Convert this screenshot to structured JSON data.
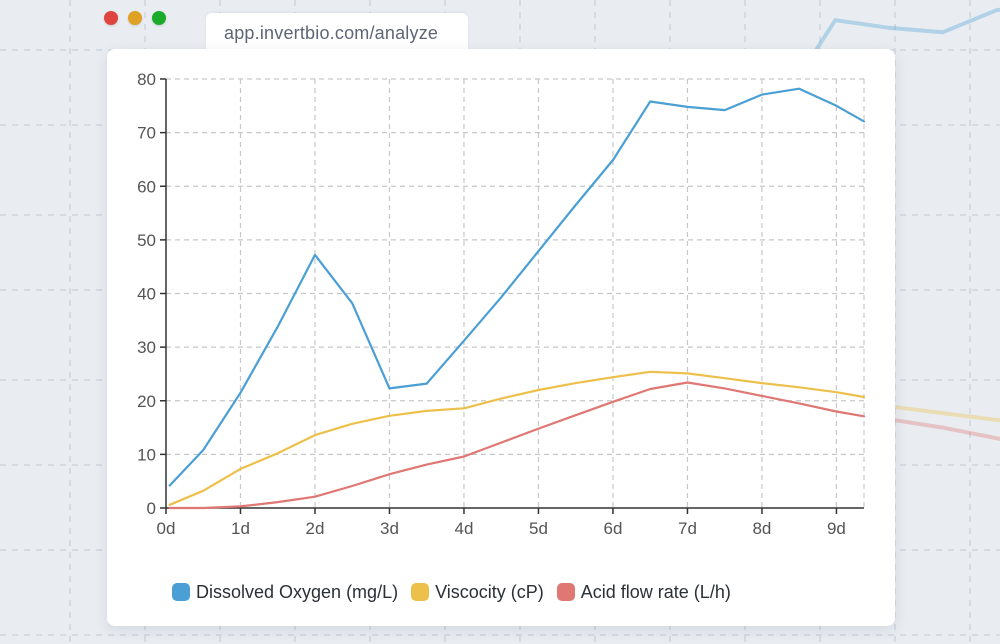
{
  "window": {
    "url": "app.invertbio.com/analyze",
    "controls": [
      "close",
      "minimize",
      "zoom"
    ]
  },
  "colors": {
    "dissolved_oxygen": "#4a9fd4",
    "viscosity": "#ecc04a",
    "acid_flow": "#df7773",
    "grid": "#c7c7c7",
    "axis": "#333333",
    "tick_text": "#555555"
  },
  "chart_data": {
    "type": "line",
    "title": "",
    "xlabel": "",
    "ylabel": "",
    "x_tick_labels": [
      "0d",
      "1d",
      "2d",
      "3d",
      "4d",
      "5d",
      "6d",
      "7d",
      "8d",
      "9d"
    ],
    "y_tick_labels": [
      "0",
      "10",
      "20",
      "30",
      "40",
      "50",
      "60",
      "70",
      "80"
    ],
    "xlim": [
      0,
      9.37
    ],
    "ylim": [
      0,
      80
    ],
    "grid": true,
    "legend_position": "bottom",
    "series": [
      {
        "name": "Dissolved Oxygen (mg/L)",
        "color_key": "dissolved_oxygen",
        "x": [
          0.05,
          0.5,
          1,
          1.5,
          2,
          2.5,
          3,
          3.5,
          4,
          4.5,
          5,
          5.5,
          6,
          6.5,
          7,
          7.5,
          8,
          8.5,
          9,
          9.37
        ],
        "y": [
          4.2,
          10.8,
          21.5,
          33.8,
          47.2,
          38.2,
          22.3,
          23.2,
          31.2,
          39.3,
          47.9,
          56.5,
          64.9,
          75.8,
          74.8,
          74.2,
          77.1,
          78.2,
          75.0,
          72.1
        ]
      },
      {
        "name": "Viscocity (cP)",
        "color_key": "viscosity",
        "x": [
          0.05,
          0.5,
          1,
          1.5,
          2,
          2.5,
          3,
          3.5,
          4,
          4.5,
          5,
          5.5,
          6,
          6.5,
          7,
          7.5,
          8,
          8.5,
          9,
          9.37
        ],
        "y": [
          0.6,
          3.2,
          7.3,
          10.2,
          13.6,
          15.7,
          17.2,
          18.1,
          18.6,
          20.4,
          22.0,
          23.3,
          24.4,
          25.4,
          25.1,
          24.2,
          23.3,
          22.5,
          21.6,
          20.7
        ]
      },
      {
        "name": "Acid flow rate (L/h)",
        "color_key": "acid_flow",
        "x": [
          0.05,
          0.5,
          1,
          1.5,
          2,
          2.5,
          3,
          3.5,
          4,
          4.5,
          5,
          5.5,
          6,
          6.5,
          7,
          7.5,
          8,
          8.5,
          9,
          9.37
        ],
        "y": [
          0,
          0,
          0.3,
          1.1,
          2.1,
          4.1,
          6.3,
          8.1,
          9.6,
          12.2,
          14.8,
          17.3,
          19.8,
          22.2,
          23.4,
          22.3,
          20.9,
          19.5,
          18.0,
          17.1
        ]
      }
    ]
  }
}
